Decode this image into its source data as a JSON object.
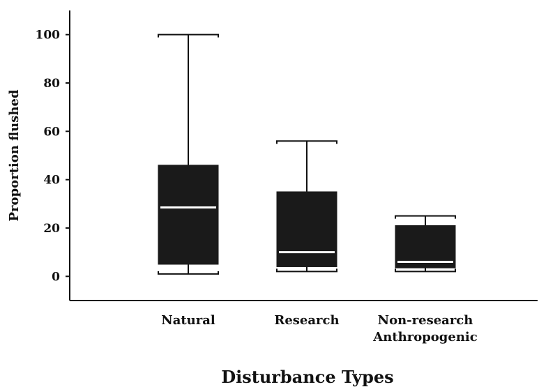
{
  "chart_data": {
    "type": "boxplot",
    "title": "",
    "xlabel": "Disturbance Types",
    "ylabel": "Proportion flushed",
    "ylim": [
      -10,
      110
    ],
    "yticks": [
      0,
      20,
      40,
      60,
      80,
      100
    ],
    "ytick_labels": [
      "0",
      "20",
      "40",
      "60",
      "80",
      "100"
    ],
    "grid": false,
    "categories": [
      {
        "lines": [
          "Natural"
        ]
      },
      {
        "lines": [
          "Research"
        ]
      },
      {
        "lines": [
          "Non-research",
          "Anthropogenic"
        ]
      }
    ],
    "boxes": [
      {
        "category": "Natural",
        "whisker_low": 1,
        "q1": 5,
        "median": 28.5,
        "q3": 46,
        "whisker_high": 100
      },
      {
        "category": "Research",
        "whisker_low": 2,
        "q1": 4,
        "median": 10,
        "q3": 35,
        "whisker_high": 56
      },
      {
        "category": "Non-research Anthropogenic",
        "whisker_low": 2,
        "q1": 3.5,
        "median": 6,
        "q3": 21,
        "whisker_high": 25
      }
    ],
    "box_color": "#1a1a1a",
    "median_color": "#ffffff",
    "line_color": "#111111"
  }
}
